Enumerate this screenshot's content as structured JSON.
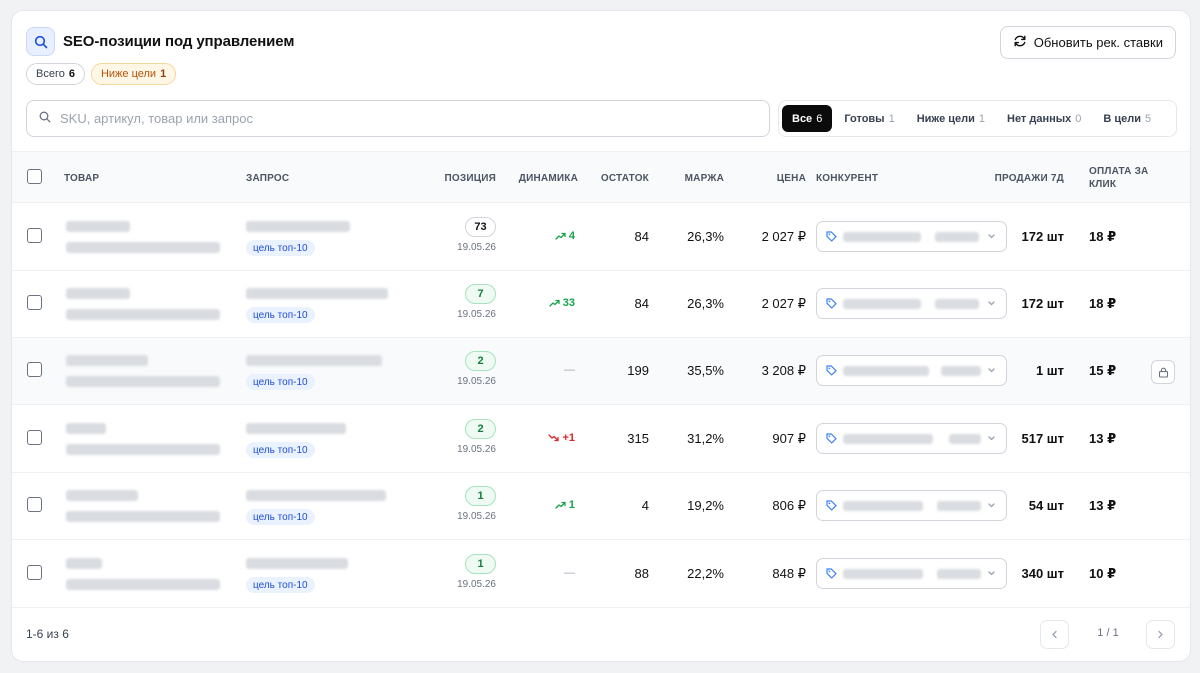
{
  "header": {
    "title": "SEO-позиции под управлением",
    "badges": [
      {
        "label": "Всего",
        "count": "6"
      },
      {
        "label": "Ниже цели",
        "count": "1"
      }
    ],
    "refresh_label": "Обновить рек. ставки"
  },
  "search": {
    "placeholder": "SKU, артикул, товар или запрос",
    "value": ""
  },
  "filters": [
    {
      "label": "Все",
      "count": "6",
      "active": true
    },
    {
      "label": "Готовы",
      "count": "1",
      "active": false
    },
    {
      "label": "Ниже цели",
      "count": "1",
      "active": false
    },
    {
      "label": "Нет данных",
      "count": "0",
      "active": false
    },
    {
      "label": "В цели",
      "count": "5",
      "active": false
    }
  ],
  "columns": {
    "product": "ТОВАР",
    "query": "ЗАПРОС",
    "position": "ПОЗИЦИЯ",
    "dynamics": "ДИНАМИКА",
    "stock": "ОСТАТОК",
    "margin": "МАРЖА",
    "price": "ЦЕНА",
    "competitor": "КОНКУРЕНТ",
    "sales7d": "ПРОДАЖИ 7Д",
    "ppc_line1": "ОПЛАТА ЗА",
    "ppc_line2": "КЛИК"
  },
  "rows": [
    {
      "goal": "цель топ-10",
      "position": "73",
      "position_style": "neutral",
      "date": "19.05.26",
      "dyn": "4",
      "dyn_dir": "up",
      "stock": "84",
      "margin": "26,3%",
      "price": "2 027 ₽",
      "sales": "172 шт",
      "ppc": "18 ₽"
    },
    {
      "goal": "цель топ-10",
      "position": "7",
      "position_style": "good",
      "date": "19.05.26",
      "dyn": "33",
      "dyn_dir": "up",
      "stock": "84",
      "margin": "26,3%",
      "price": "2 027 ₽",
      "sales": "172 шт",
      "ppc": "18 ₽"
    },
    {
      "goal": "цель топ-10",
      "position": "2",
      "position_style": "good",
      "date": "19.05.26",
      "dyn": "—",
      "dyn_dir": "none",
      "stock": "199",
      "margin": "35,5%",
      "price": "3 208 ₽",
      "sales": "1 шт",
      "ppc": "15 ₽"
    },
    {
      "goal": "цель топ-10",
      "position": "2",
      "position_style": "good",
      "date": "19.05.26",
      "dyn": "+1",
      "dyn_dir": "down",
      "stock": "315",
      "margin": "31,2%",
      "price": "907 ₽",
      "sales": "517 шт",
      "ppc": "13 ₽"
    },
    {
      "goal": "цель топ-10",
      "position": "1",
      "position_style": "good",
      "date": "19.05.26",
      "dyn": "1",
      "dyn_dir": "up",
      "stock": "4",
      "margin": "19,2%",
      "price": "806 ₽",
      "sales": "54 шт",
      "ppc": "13 ₽"
    },
    {
      "goal": "цель топ-10",
      "position": "1",
      "position_style": "good",
      "date": "19.05.26",
      "dyn": "—",
      "dyn_dir": "none",
      "stock": "88",
      "margin": "22,2%",
      "price": "848 ₽",
      "sales": "340 шт",
      "ppc": "10 ₽"
    }
  ],
  "footer": {
    "range": "1-6 из 6",
    "pages": "1 / 1"
  },
  "colors": {
    "accent": "#1d4ed8",
    "positive": "#16a34a",
    "negative": "#dc2626",
    "warning": "#b45309"
  },
  "icons": [
    "search-icon",
    "refresh-icon",
    "tag-icon",
    "chevron-down-icon",
    "trend-up-icon",
    "trend-down-icon",
    "lock-icon",
    "chevron-left-icon",
    "chevron-right-icon"
  ]
}
